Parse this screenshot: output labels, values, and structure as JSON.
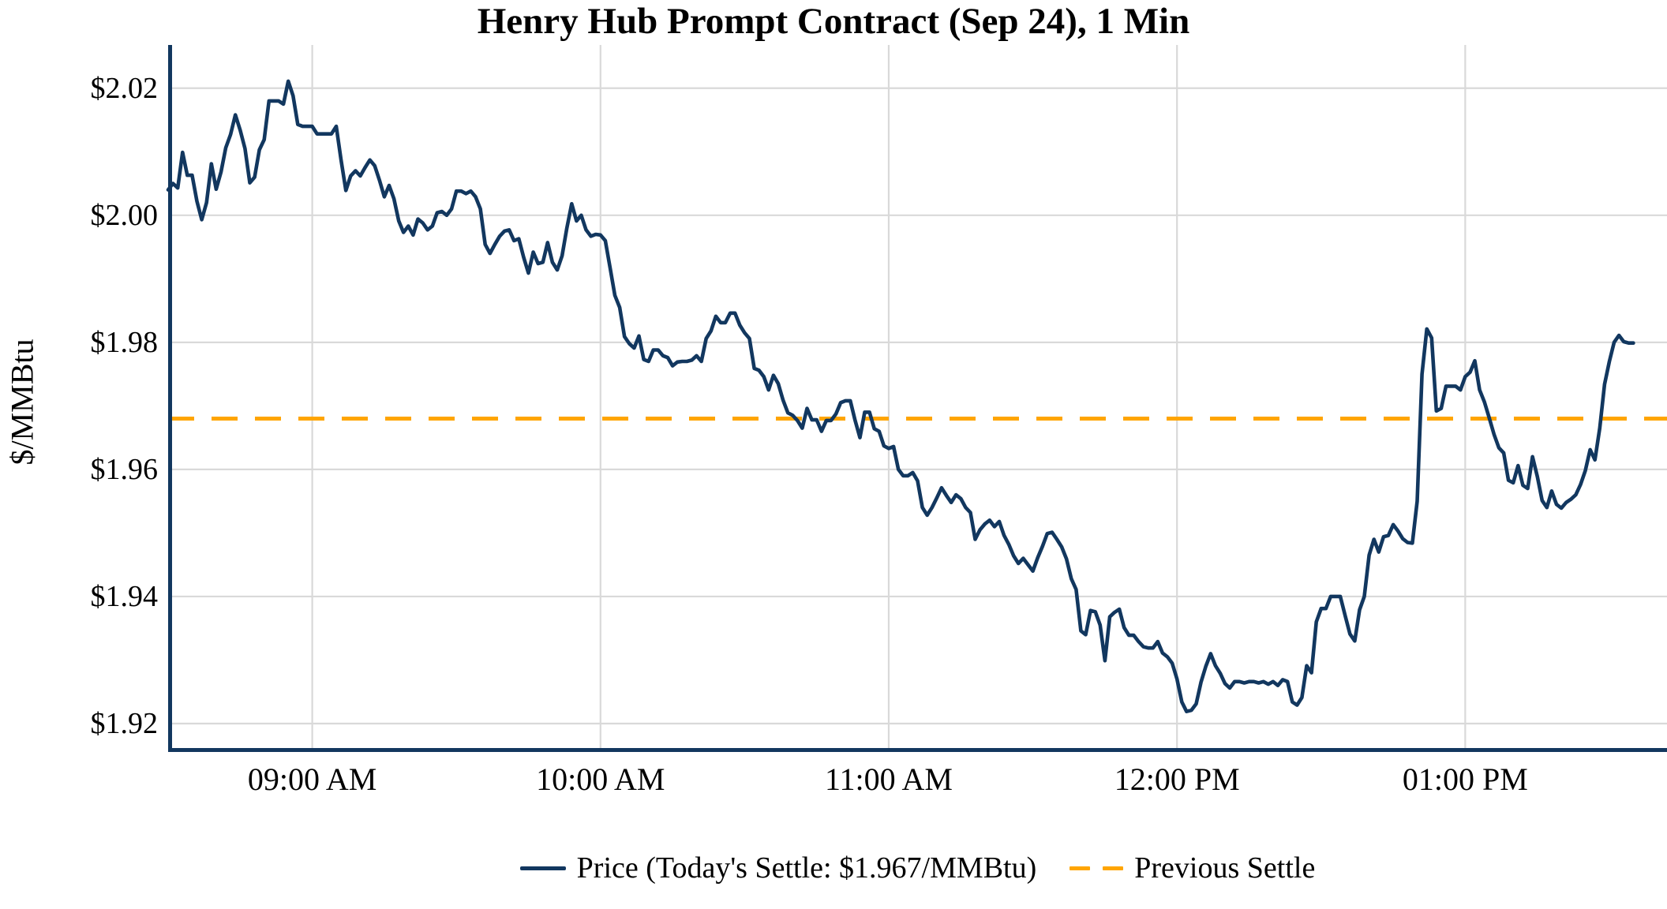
{
  "chart": {
    "title": "Henry Hub Prompt Contract (Sep 24), 1 Min",
    "ylabel": "$/MMBtu",
    "legend": {
      "price_label": "Price (Today's Settle: $1.967/MMBtu)",
      "prev_settle_label": "Previous Settle"
    },
    "colors": {
      "line": "#12375f",
      "prev_settle": "#FFA500",
      "grid": "#d9d9d9",
      "axis": "#12375f",
      "text": "#000000",
      "background": "#ffffff"
    }
  },
  "chart_data": {
    "type": "line",
    "title": "Henry Hub Prompt Contract (Sep 24), 1 Min",
    "xlabel": "",
    "ylabel": "$/MMBtu",
    "legend_position": "bottom",
    "grid": true,
    "todays_settle": 1.967,
    "previous_settle": 1.968,
    "x_start_time": "08:30 AM",
    "x_start_minutes": 510,
    "x_interval_minutes": 1,
    "xlim_minutes": [
      510,
      822
    ],
    "ylim": [
      1.9159,
      2.0268
    ],
    "x_ticks": [
      {
        "minutes": 540,
        "label": "09:00 AM"
      },
      {
        "minutes": 600,
        "label": "10:00 AM"
      },
      {
        "minutes": 660,
        "label": "11:00 AM"
      },
      {
        "minutes": 720,
        "label": "12:00 PM"
      },
      {
        "minutes": 780,
        "label": "01:00 PM"
      }
    ],
    "y_ticks": [
      {
        "value": 2.02,
        "label": "$2.02"
      },
      {
        "value": 2.0,
        "label": "$2.00"
      },
      {
        "value": 1.98,
        "label": "$1.98"
      },
      {
        "value": 1.96,
        "label": "$1.96"
      },
      {
        "value": 1.94,
        "label": "$1.94"
      },
      {
        "value": 1.92,
        "label": "$1.92"
      }
    ],
    "series": [
      {
        "name": "Price (Today's Settle: $1.967/MMBtu)",
        "values": [
          2.004,
          2.005,
          2.0043,
          2.0099,
          2.0063,
          2.0063,
          2.0022,
          1.9993,
          2.002,
          2.0081,
          2.0041,
          2.0068,
          2.0106,
          2.0127,
          2.0158,
          2.0134,
          2.0105,
          2.0051,
          2.006,
          2.0103,
          2.0119,
          2.018,
          2.018,
          2.018,
          2.0175,
          2.0211,
          2.0188,
          2.0143,
          2.014,
          2.014,
          2.014,
          2.0128,
          2.0128,
          2.0128,
          2.0128,
          2.014,
          2.0087,
          2.0039,
          2.0062,
          2.007,
          2.0062,
          2.0075,
          2.0087,
          2.0078,
          2.0055,
          2.0029,
          2.0047,
          2.0026,
          1.9991,
          1.9973,
          1.9983,
          1.9969,
          1.9994,
          1.9988,
          1.9977,
          1.9983,
          2.0004,
          2.0006,
          2.0,
          2.001,
          2.0038,
          2.0038,
          2.0034,
          2.0038,
          2.0029,
          2.001,
          1.9954,
          1.994,
          1.9954,
          1.9967,
          1.9975,
          1.9977,
          1.996,
          1.9963,
          1.9934,
          1.9909,
          1.9942,
          1.9924,
          1.9926,
          1.9957,
          1.9926,
          1.9914,
          1.9936,
          1.998,
          2.0018,
          1.9991,
          2.0,
          1.9977,
          1.9967,
          1.997,
          1.9969,
          1.996,
          1.9917,
          1.9874,
          1.9855,
          1.9809,
          1.9798,
          1.9791,
          1.981,
          1.9773,
          1.977,
          1.9788,
          1.9788,
          1.9779,
          1.9776,
          1.9763,
          1.9769,
          1.977,
          1.977,
          1.9772,
          1.9779,
          1.977,
          1.9806,
          1.9818,
          1.9841,
          1.9831,
          1.9831,
          1.9846,
          1.9846,
          1.9827,
          1.9815,
          1.9806,
          1.9759,
          1.9756,
          1.9746,
          1.9725,
          1.9748,
          1.9735,
          1.9709,
          1.9689,
          1.9685,
          1.9677,
          1.9665,
          1.9696,
          1.9678,
          1.9678,
          1.966,
          1.9677,
          1.9677,
          1.9687,
          1.9705,
          1.9708,
          1.9708,
          1.9677,
          1.965,
          1.969,
          1.969,
          1.9664,
          1.966,
          1.9637,
          1.9633,
          1.9636,
          1.96,
          1.959,
          1.959,
          1.9595,
          1.9582,
          1.954,
          1.9528,
          1.954,
          1.9555,
          1.9571,
          1.9559,
          1.9548,
          1.956,
          1.9554,
          1.954,
          1.9532,
          1.949,
          1.9505,
          1.9514,
          1.952,
          1.951,
          1.9518,
          1.9496,
          1.9482,
          1.9464,
          1.9452,
          1.946,
          1.945,
          1.944,
          1.9461,
          1.9479,
          1.9499,
          1.9501,
          1.949,
          1.9478,
          1.9459,
          1.9428,
          1.9411,
          1.9346,
          1.934,
          1.9378,
          1.9376,
          1.9355,
          1.9299,
          1.9368,
          1.9375,
          1.938,
          1.9351,
          1.9339,
          1.9339,
          1.9329,
          1.9321,
          1.9319,
          1.9319,
          1.9329,
          1.9311,
          1.9305,
          1.9295,
          1.927,
          1.9234,
          1.9219,
          1.9221,
          1.9231,
          1.9265,
          1.929,
          1.931,
          1.9291,
          1.9279,
          1.9263,
          1.9256,
          1.9266,
          1.9266,
          1.9264,
          1.9266,
          1.9266,
          1.9264,
          1.9266,
          1.9262,
          1.9266,
          1.926,
          1.9269,
          1.9266,
          1.9234,
          1.9229,
          1.9241,
          1.9291,
          1.928,
          1.936,
          1.9381,
          1.9381,
          1.94,
          1.94,
          1.94,
          1.937,
          1.9341,
          1.933,
          1.9379,
          1.94,
          1.9465,
          1.949,
          1.947,
          1.9494,
          1.9496,
          1.9513,
          1.9503,
          1.9491,
          1.9485,
          1.9484,
          1.955,
          1.975,
          1.9821,
          1.9807,
          1.9692,
          1.9696,
          1.9731,
          1.9731,
          1.9731,
          1.9725,
          1.9746,
          1.9753,
          1.9771,
          1.9725,
          1.9706,
          1.9681,
          1.9655,
          1.9634,
          1.9626,
          1.9583,
          1.9579,
          1.9606,
          1.9575,
          1.957,
          1.962,
          1.9589,
          1.9551,
          1.954,
          1.9566,
          1.9545,
          1.9539,
          1.9548,
          1.9553,
          1.956,
          1.9576,
          1.9598,
          1.9631,
          1.9615,
          1.9665,
          1.9734,
          1.977,
          1.98,
          1.9811,
          1.9801,
          1.9799,
          1.9799
        ]
      }
    ]
  }
}
